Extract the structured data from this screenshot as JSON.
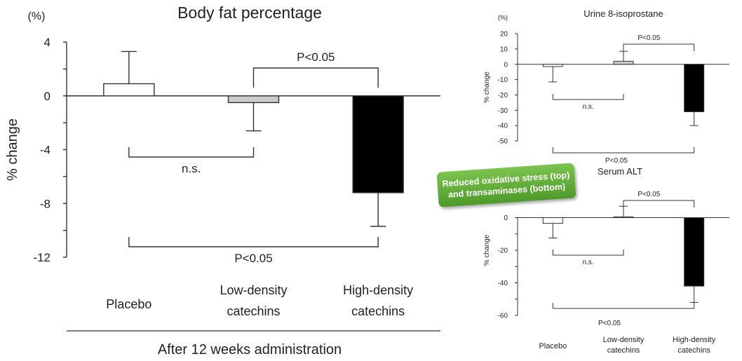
{
  "chart_data": [
    {
      "type": "bar",
      "title": "Body fat percentage",
      "unit_label": "(%)",
      "ylabel": "% change",
      "xlabel": "After 12 weeks administration",
      "ylim": [
        -12,
        4
      ],
      "yticks": [
        "4",
        "0",
        "-4",
        "-8",
        "-12"
      ],
      "categories": [
        [
          "Placebo"
        ],
        [
          "Low-density",
          "catechins"
        ],
        [
          "High-density",
          "catechins"
        ]
      ],
      "values": [
        0.9,
        -0.5,
        -7.2
      ],
      "errors": [
        2.4,
        2.1,
        2.5
      ],
      "bar_colors": [
        "#ffffff",
        "#cccccc",
        "#000000"
      ],
      "comparisons": [
        {
          "from": 1,
          "to": 2,
          "label": "P<0.05",
          "side": "above"
        },
        {
          "from": 0,
          "to": 1,
          "label": "n.s.",
          "side": "below"
        },
        {
          "from": 0,
          "to": 2,
          "label": "P<0.05",
          "side": "below"
        }
      ]
    },
    {
      "type": "bar",
      "title": "Urine 8-isoprostane",
      "unit_label": "(%)",
      "ylabel": "% change",
      "ylim": [
        -50,
        20
      ],
      "yticks": [
        "20",
        "10",
        "0",
        "-10",
        "-20",
        "-30",
        "-40",
        "-50"
      ],
      "categories": [
        [
          "Placebo"
        ],
        [
          "Low-density",
          "catechins"
        ],
        [
          "High-density",
          "catechins"
        ]
      ],
      "values": [
        -1.5,
        2,
        -31
      ],
      "errors": [
        10,
        6.5,
        9
      ],
      "bar_colors": [
        "#ffffff",
        "#cccccc",
        "#000000"
      ],
      "comparisons": [
        {
          "from": 1,
          "to": 2,
          "label": "P<0.05",
          "side": "above"
        },
        {
          "from": 0,
          "to": 1,
          "label": "n.s.",
          "side": "below"
        },
        {
          "from": 0,
          "to": 2,
          "label": "P<0.05",
          "side": "below"
        }
      ]
    },
    {
      "type": "bar",
      "title": "Serum ALT",
      "ylabel": "% change",
      "ylim": [
        -60,
        20
      ],
      "yticks": [
        "0",
        "-20",
        "-40",
        "-60"
      ],
      "categories": [
        [
          "Placebo"
        ],
        [
          "Low-density",
          "catechins"
        ],
        [
          "High-density",
          "catechins"
        ]
      ],
      "values": [
        -3.5,
        0.5,
        -42
      ],
      "errors": [
        9,
        6.5,
        10
      ],
      "bar_colors": [
        "#ffffff",
        "#cccccc",
        "#000000"
      ],
      "comparisons": [
        {
          "from": 1,
          "to": 2,
          "label": "P<0.05",
          "side": "above"
        },
        {
          "from": 0,
          "to": 1,
          "label": "n.s.",
          "side": "below"
        },
        {
          "from": 0,
          "to": 2,
          "label": "P<0.05",
          "side": "below"
        }
      ]
    }
  ],
  "callout": {
    "line1": "Reduced oxidative stress (top)",
    "line2": "and transaminases (bottom)"
  }
}
